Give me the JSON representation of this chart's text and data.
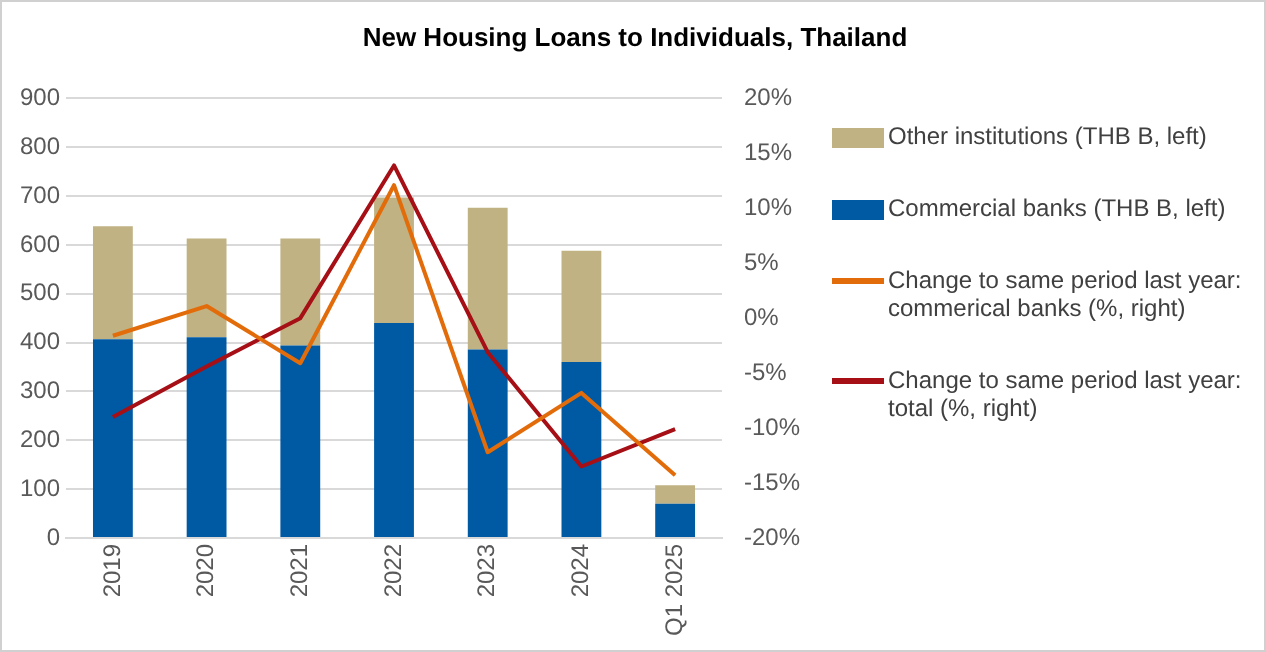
{
  "chart_data": {
    "type": "bar",
    "title": "New Housing Loans to Individuals, Thailand",
    "categories": [
      "2019",
      "2020",
      "2021",
      "2022",
      "2023",
      "2024",
      "Q1 2025"
    ],
    "stacked": true,
    "series": [
      {
        "name": "Commercial banks (THB B, left)",
        "color": "#005aa3",
        "values": [
          407,
          411,
          394,
          440,
          386,
          360,
          70
        ]
      },
      {
        "name": "Other institutions (THB B, left)",
        "color": "#c0b283",
        "values": [
          231,
          202,
          219,
          257,
          290,
          228,
          38
        ]
      },
      {
        "name": "Change to same period last year: commerical banks (%, right)",
        "type": "line",
        "axis": "y2",
        "color": "#e36c0a",
        "values": [
          -1.6,
          1.1,
          -4.1,
          12.1,
          -12.2,
          -6.8,
          -14.3
        ]
      },
      {
        "name": "Change to same period last year: total (%, right)",
        "type": "line",
        "axis": "y2",
        "color": "#a50f15",
        "values": [
          -9.0,
          -4.4,
          0.0,
          13.9,
          -3.1,
          -13.5,
          -10.1
        ]
      }
    ],
    "ylim": [
      0,
      900
    ],
    "yticks": [
      0,
      100,
      200,
      300,
      400,
      500,
      600,
      700,
      800,
      900
    ],
    "y2lim": [
      -20,
      20
    ],
    "y2ticks": [
      {
        "value": -20,
        "label": "-20%"
      },
      {
        "value": -15,
        "label": "-15%"
      },
      {
        "value": -10,
        "label": "-10%"
      },
      {
        "value": -5,
        "label": "-5%"
      },
      {
        "value": 0,
        "label": "0%"
      },
      {
        "value": 5,
        "label": "5%"
      },
      {
        "value": 10,
        "label": "10%"
      },
      {
        "value": 15,
        "label": "15%"
      },
      {
        "value": 20,
        "label": "20%"
      }
    ],
    "grid": "y",
    "legend": "right",
    "marker": "none",
    "line_style": "solid"
  }
}
